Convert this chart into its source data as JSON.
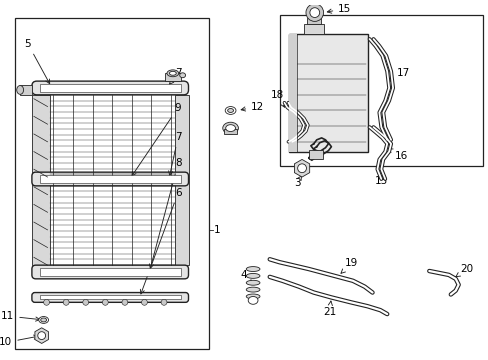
{
  "background_color": "#ffffff",
  "line_color": "#222222",
  "label_color": "#000000",
  "figsize": [
    4.89,
    3.6
  ],
  "dpi": 100,
  "xlim": [
    0,
    489
  ],
  "ylim": [
    0,
    360
  ]
}
